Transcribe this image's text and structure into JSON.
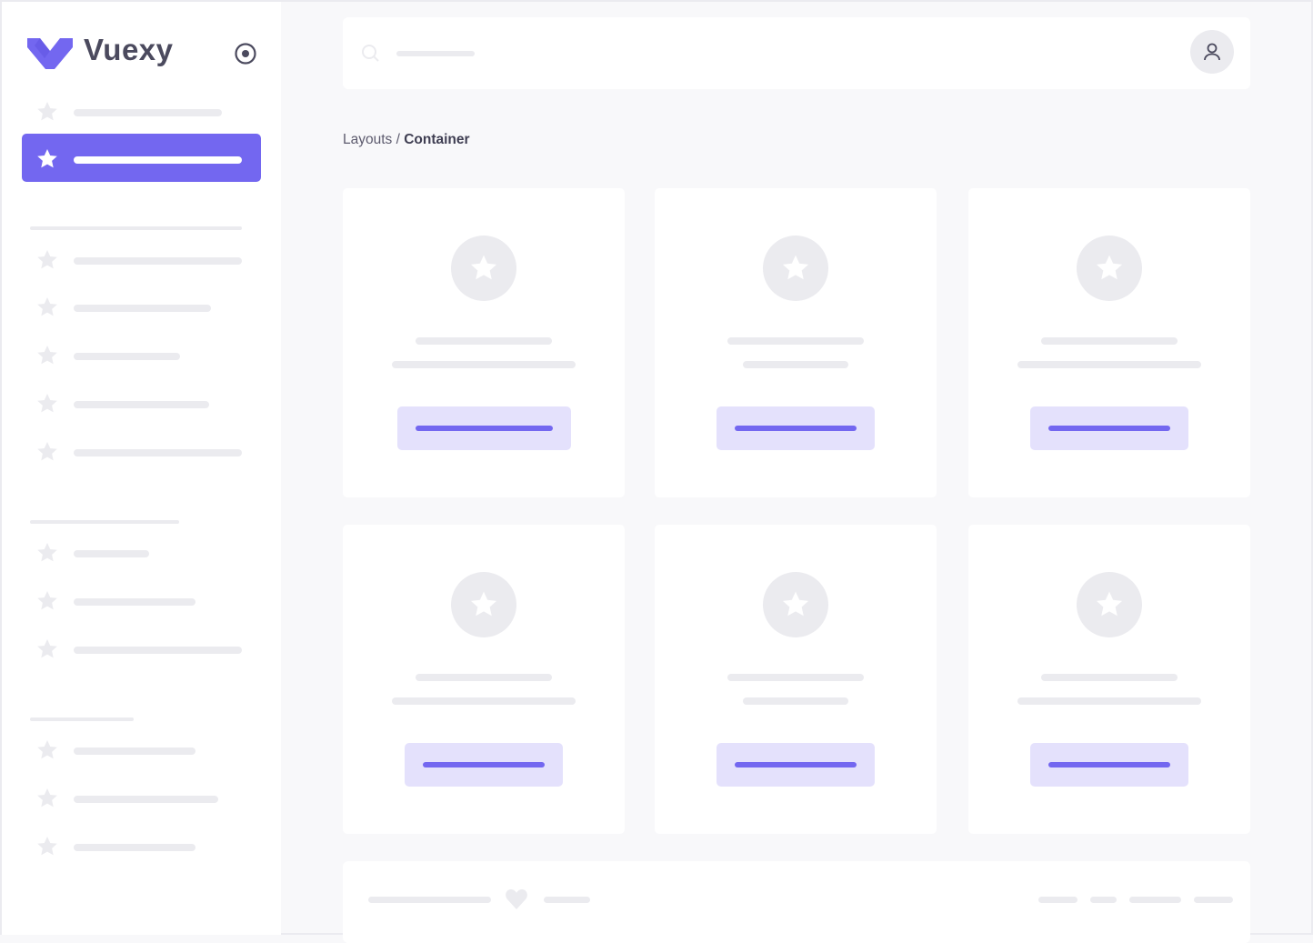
{
  "brand": {
    "name": "Vuexy",
    "color": "#7367f0"
  },
  "breadcrumb": {
    "parent": "Layouts",
    "separator": " / ",
    "current": "Container"
  },
  "colors": {
    "primary": "#7367f0",
    "primary_light": "#e4e1fc",
    "skeleton": "#ebebef",
    "background": "#f8f8fa"
  },
  "icons": {
    "logo": "vuexy-logo",
    "toggle": "radio-circle-icon",
    "search": "search-icon",
    "user": "user-icon",
    "nav": "star-icon",
    "card": "star-icon",
    "footer": "heart-icon"
  }
}
